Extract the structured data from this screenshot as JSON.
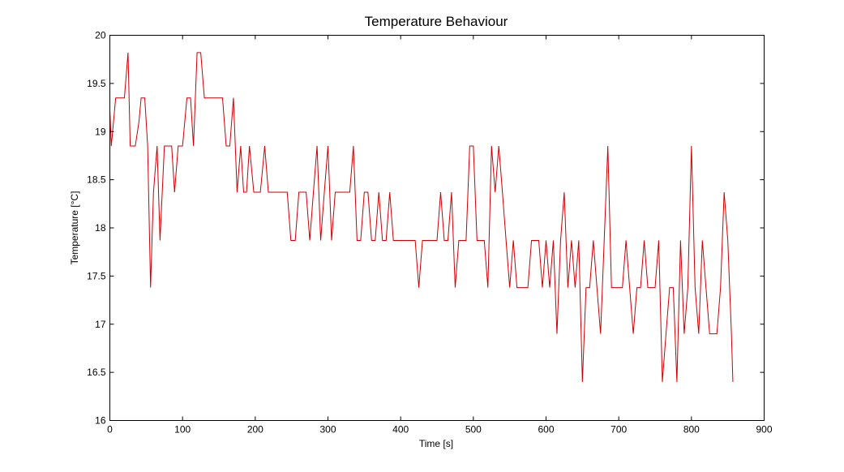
{
  "chart_data": {
    "type": "line",
    "title": "Temperature Behaviour",
    "xlabel": "Time [s]",
    "ylabel": "Temperature [°C]",
    "xlim": [
      0,
      900
    ],
    "ylim": [
      16,
      20
    ],
    "xticks": [
      "0",
      "100",
      "200",
      "300",
      "400",
      "500",
      "600",
      "700",
      "800",
      "900"
    ],
    "yticks": [
      "16",
      "16.5",
      "17",
      "17.5",
      "18",
      "18.5",
      "19",
      "19.5",
      "20"
    ],
    "grid": false,
    "line_color": "#cc0000",
    "series": [
      {
        "points": [
          [
            0,
            19.22
          ],
          [
            2,
            18.85
          ],
          [
            5,
            19.1
          ],
          [
            8,
            19.35
          ],
          [
            20,
            19.35
          ],
          [
            25,
            19.82
          ],
          [
            28,
            18.85
          ],
          [
            35,
            18.85
          ],
          [
            40,
            19.1
          ],
          [
            43,
            19.35
          ],
          [
            48,
            19.35
          ],
          [
            52,
            18.85
          ],
          [
            56,
            17.38
          ],
          [
            60,
            18.37
          ],
          [
            65,
            18.85
          ],
          [
            69,
            17.87
          ],
          [
            75,
            18.85
          ],
          [
            85,
            18.85
          ],
          [
            89,
            18.37
          ],
          [
            94,
            18.85
          ],
          [
            100,
            18.85
          ],
          [
            106,
            19.35
          ],
          [
            111,
            19.35
          ],
          [
            115,
            18.85
          ],
          [
            120,
            19.82
          ],
          [
            125,
            19.82
          ],
          [
            130,
            19.35
          ],
          [
            155,
            19.35
          ],
          [
            160,
            18.85
          ],
          [
            165,
            18.85
          ],
          [
            170,
            19.35
          ],
          [
            175,
            18.37
          ],
          [
            180,
            18.85
          ],
          [
            184,
            18.37
          ],
          [
            188,
            18.37
          ],
          [
            192,
            18.85
          ],
          [
            198,
            18.37
          ],
          [
            207,
            18.37
          ],
          [
            213,
            18.85
          ],
          [
            218,
            18.37
          ],
          [
            244,
            18.37
          ],
          [
            249,
            17.87
          ],
          [
            255,
            17.87
          ],
          [
            260,
            18.37
          ],
          [
            270,
            18.37
          ],
          [
            275,
            17.87
          ],
          [
            280,
            18.37
          ],
          [
            285,
            18.85
          ],
          [
            290,
            17.87
          ],
          [
            295,
            18.37
          ],
          [
            300,
            18.85
          ],
          [
            305,
            17.87
          ],
          [
            310,
            18.37
          ],
          [
            330,
            18.37
          ],
          [
            335,
            18.85
          ],
          [
            340,
            17.87
          ],
          [
            345,
            17.87
          ],
          [
            350,
            18.37
          ],
          [
            355,
            18.37
          ],
          [
            360,
            17.87
          ],
          [
            365,
            17.87
          ],
          [
            370,
            18.37
          ],
          [
            375,
            17.87
          ],
          [
            380,
            17.87
          ],
          [
            385,
            18.37
          ],
          [
            390,
            17.87
          ],
          [
            420,
            17.87
          ],
          [
            425,
            17.38
          ],
          [
            430,
            17.87
          ],
          [
            450,
            17.87
          ],
          [
            455,
            18.37
          ],
          [
            460,
            17.87
          ],
          [
            465,
            17.87
          ],
          [
            470,
            18.37
          ],
          [
            475,
            17.38
          ],
          [
            480,
            17.87
          ],
          [
            490,
            17.87
          ],
          [
            495,
            18.85
          ],
          [
            500,
            18.85
          ],
          [
            505,
            17.87
          ],
          [
            515,
            17.87
          ],
          [
            520,
            17.38
          ],
          [
            525,
            18.85
          ],
          [
            530,
            18.37
          ],
          [
            535,
            18.85
          ],
          [
            540,
            18.37
          ],
          [
            545,
            17.87
          ],
          [
            550,
            17.38
          ],
          [
            555,
            17.87
          ],
          [
            560,
            17.38
          ],
          [
            575,
            17.38
          ],
          [
            580,
            17.87
          ],
          [
            590,
            17.87
          ],
          [
            595,
            17.38
          ],
          [
            600,
            17.87
          ],
          [
            605,
            17.38
          ],
          [
            610,
            17.87
          ],
          [
            615,
            16.9
          ],
          [
            620,
            17.87
          ],
          [
            625,
            18.37
          ],
          [
            630,
            17.38
          ],
          [
            635,
            17.87
          ],
          [
            640,
            17.38
          ],
          [
            645,
            17.87
          ],
          [
            650,
            16.4
          ],
          [
            655,
            17.38
          ],
          [
            660,
            17.38
          ],
          [
            665,
            17.87
          ],
          [
            670,
            17.38
          ],
          [
            675,
            16.9
          ],
          [
            680,
            17.87
          ],
          [
            685,
            18.85
          ],
          [
            690,
            17.38
          ],
          [
            705,
            17.38
          ],
          [
            710,
            17.87
          ],
          [
            715,
            17.38
          ],
          [
            720,
            16.9
          ],
          [
            725,
            17.38
          ],
          [
            730,
            17.38
          ],
          [
            735,
            17.87
          ],
          [
            740,
            17.38
          ],
          [
            750,
            17.38
          ],
          [
            755,
            17.87
          ],
          [
            760,
            16.4
          ],
          [
            765,
            16.9
          ],
          [
            770,
            17.38
          ],
          [
            775,
            17.38
          ],
          [
            780,
            16.4
          ],
          [
            785,
            17.87
          ],
          [
            790,
            16.9
          ],
          [
            795,
            17.38
          ],
          [
            800,
            18.85
          ],
          [
            805,
            17.38
          ],
          [
            810,
            16.9
          ],
          [
            815,
            17.87
          ],
          [
            820,
            17.38
          ],
          [
            825,
            16.9
          ],
          [
            835,
            16.9
          ],
          [
            840,
            17.38
          ],
          [
            845,
            18.37
          ],
          [
            850,
            17.87
          ],
          [
            855,
            16.9
          ],
          [
            857,
            16.4
          ]
        ]
      }
    ]
  }
}
